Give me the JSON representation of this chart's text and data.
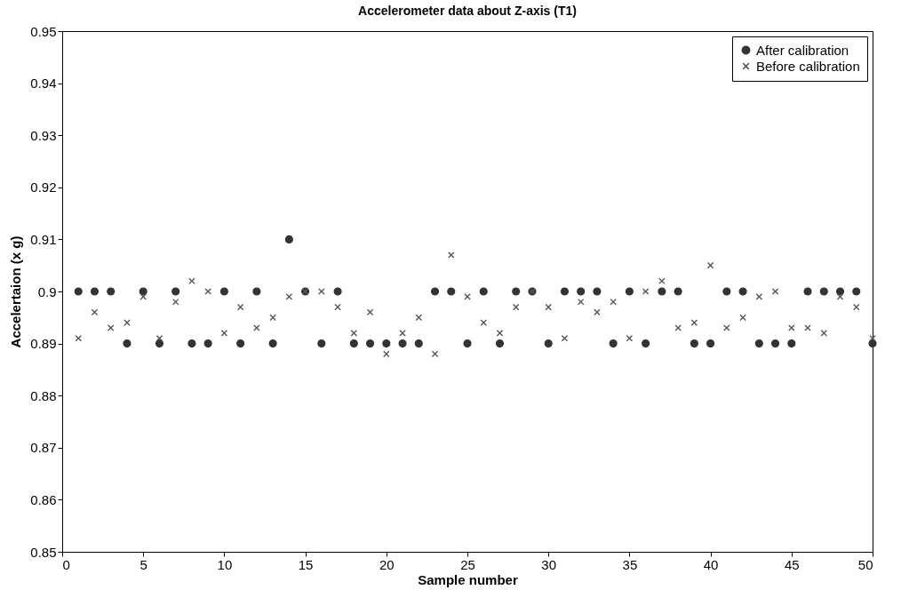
{
  "chart_data": {
    "type": "scatter",
    "title": "Accelerometer data about Z-axis (T1)",
    "xlabel": "Sample number",
    "ylabel": "Accelertaion (x g)",
    "x": [
      1,
      2,
      3,
      4,
      5,
      6,
      7,
      8,
      9,
      10,
      11,
      12,
      13,
      14,
      15,
      16,
      17,
      18,
      19,
      20,
      21,
      22,
      23,
      24,
      25,
      26,
      27,
      28,
      29,
      30,
      31,
      32,
      33,
      34,
      35,
      36,
      37,
      38,
      39,
      40,
      41,
      42,
      43,
      44,
      45,
      46,
      47,
      48,
      49,
      50
    ],
    "series": [
      {
        "name": "After calibration",
        "color": "#333333",
        "marker": "circle",
        "values": [
          0.9,
          0.9,
          0.9,
          0.89,
          0.9,
          0.89,
          0.9,
          0.89,
          0.89,
          0.9,
          0.89,
          0.9,
          0.89,
          0.91,
          0.9,
          0.89,
          0.9,
          0.89,
          0.89,
          0.89,
          0.89,
          0.89,
          0.9,
          0.9,
          0.89,
          0.9,
          0.89,
          0.9,
          0.9,
          0.89,
          0.9,
          0.9,
          0.9,
          0.89,
          0.9,
          0.89,
          0.9,
          0.9,
          0.89,
          0.89,
          0.9,
          0.9,
          0.89,
          0.89,
          0.89,
          0.9,
          0.9,
          0.9,
          0.9,
          0.89
        ]
      },
      {
        "name": "Before calibration",
        "color": "#555555",
        "marker": "cross",
        "values": [
          0.891,
          0.896,
          0.893,
          0.894,
          0.899,
          0.891,
          0.898,
          0.902,
          0.9,
          0.892,
          0.897,
          0.893,
          0.895,
          0.899,
          0.9,
          0.9,
          0.897,
          0.892,
          0.896,
          0.888,
          0.892,
          0.895,
          0.888,
          0.907,
          0.899,
          0.894,
          0.892,
          0.897,
          0.9,
          0.897,
          0.891,
          0.898,
          0.896,
          0.898,
          0.891,
          0.9,
          0.902,
          0.893,
          0.894,
          0.905,
          0.893,
          0.895,
          0.899,
          0.9,
          0.893,
          0.893,
          0.892,
          0.899,
          0.897,
          0.891
        ]
      }
    ],
    "xlim": [
      0,
      50
    ],
    "xticks": [
      0,
      5,
      10,
      15,
      20,
      25,
      30,
      35,
      40,
      45,
      50
    ],
    "ylim": [
      0.85,
      0.95
    ],
    "yticks": [
      0.85,
      0.86,
      0.87,
      0.88,
      0.89,
      0.9,
      0.91,
      0.92,
      0.93,
      0.94,
      0.95
    ],
    "legend": "top right",
    "grid": false
  }
}
